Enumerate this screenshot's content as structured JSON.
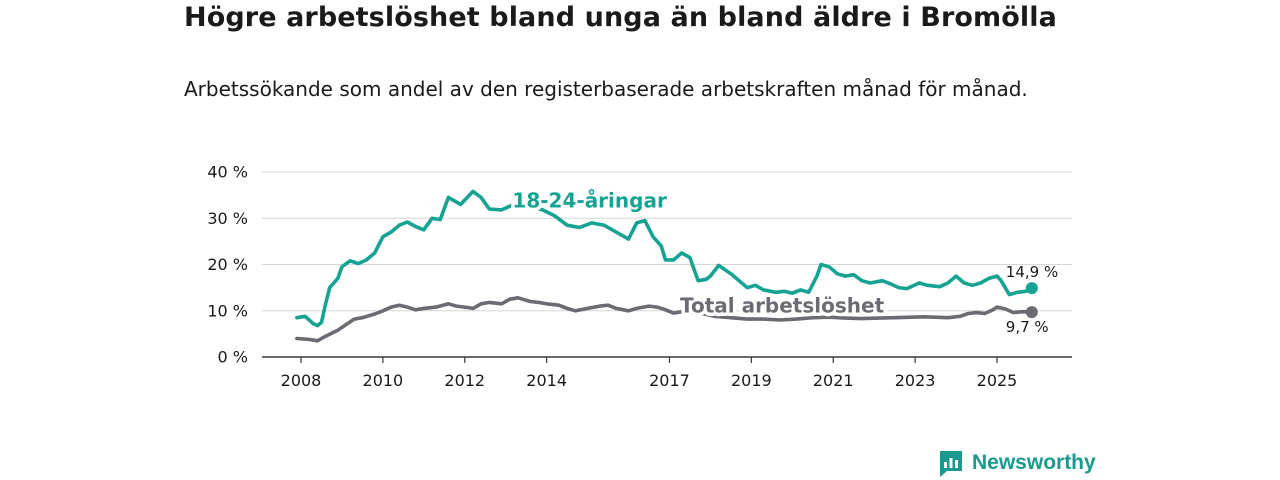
{
  "header": {
    "title": "Högre arbetslöshet bland unga än bland äldre i Bromölla",
    "subtitle": "Arbetssökande som andel av den registerbaserade arbetskraften månad för månad."
  },
  "brand": {
    "name": "Newsworthy",
    "icon": "newsworthy-logo-icon",
    "color": "#1a9a8e"
  },
  "chart_data": {
    "type": "line",
    "title": "Högre arbetslöshet bland unga än bland äldre i Bromölla",
    "subtitle": "Arbetssökande som andel av den registerbaserade arbetskraften månad för månad.",
    "xlabel": "",
    "ylabel": "",
    "xlim": [
      2007.7,
      2026.7
    ],
    "ylim": [
      0,
      40
    ],
    "grid": true,
    "x_ticks": [
      2008,
      2010,
      2012,
      2014,
      2017,
      2019,
      2021,
      2023,
      2025
    ],
    "x_tick_labels": [
      "2008",
      "2010",
      "2012",
      "2014",
      "2017",
      "2019",
      "2021",
      "2023",
      "2025"
    ],
    "y_ticks": [
      0,
      10,
      20,
      30,
      40
    ],
    "y_tick_labels": [
      "0 %",
      "10 %",
      "20 %",
      "30 %",
      "40 %"
    ],
    "series": [
      {
        "name": "18-24-åringar",
        "color": "#16a394",
        "end_label": "14,9 %",
        "points": [
          [
            2007.9,
            8.5
          ],
          [
            2008.1,
            8.8
          ],
          [
            2008.3,
            7.2
          ],
          [
            2008.4,
            6.8
          ],
          [
            2008.5,
            7.5
          ],
          [
            2008.6,
            11.5
          ],
          [
            2008.7,
            15.0
          ],
          [
            2008.9,
            17.0
          ],
          [
            2009.0,
            19.5
          ],
          [
            2009.2,
            20.8
          ],
          [
            2009.4,
            20.2
          ],
          [
            2009.6,
            21.0
          ],
          [
            2009.8,
            22.5
          ],
          [
            2010.0,
            26.0
          ],
          [
            2010.2,
            27.0
          ],
          [
            2010.4,
            28.5
          ],
          [
            2010.6,
            29.2
          ],
          [
            2010.8,
            28.2
          ],
          [
            2011.0,
            27.5
          ],
          [
            2011.2,
            30.0
          ],
          [
            2011.4,
            29.7
          ],
          [
            2011.6,
            34.5
          ],
          [
            2011.9,
            33.0
          ],
          [
            2012.2,
            35.8
          ],
          [
            2012.4,
            34.5
          ],
          [
            2012.6,
            32.0
          ],
          [
            2012.9,
            31.8
          ],
          [
            2013.2,
            33.0
          ],
          [
            2013.6,
            32.5
          ],
          [
            2013.9,
            31.8
          ],
          [
            2014.2,
            30.5
          ],
          [
            2014.5,
            28.5
          ],
          [
            2014.8,
            28.0
          ],
          [
            2015.1,
            29.0
          ],
          [
            2015.4,
            28.5
          ],
          [
            2015.6,
            27.5
          ],
          [
            2015.8,
            26.5
          ],
          [
            2016.0,
            25.5
          ],
          [
            2016.2,
            29.0
          ],
          [
            2016.4,
            29.5
          ],
          [
            2016.6,
            26.0
          ],
          [
            2016.8,
            24.0
          ],
          [
            2016.9,
            21.0
          ],
          [
            2017.1,
            21.0
          ],
          [
            2017.3,
            22.5
          ],
          [
            2017.5,
            21.5
          ],
          [
            2017.7,
            16.5
          ],
          [
            2017.9,
            16.8
          ],
          [
            2018.0,
            17.5
          ],
          [
            2018.2,
            19.8
          ],
          [
            2018.5,
            18.0
          ],
          [
            2018.7,
            16.5
          ],
          [
            2018.9,
            15.0
          ],
          [
            2019.1,
            15.5
          ],
          [
            2019.3,
            14.5
          ],
          [
            2019.6,
            14.0
          ],
          [
            2019.8,
            14.2
          ],
          [
            2020.0,
            13.8
          ],
          [
            2020.2,
            14.5
          ],
          [
            2020.4,
            14.0
          ],
          [
            2020.6,
            17.5
          ],
          [
            2020.7,
            20.0
          ],
          [
            2020.9,
            19.5
          ],
          [
            2021.1,
            18.0
          ],
          [
            2021.3,
            17.5
          ],
          [
            2021.5,
            17.8
          ],
          [
            2021.7,
            16.5
          ],
          [
            2021.9,
            16.0
          ],
          [
            2022.2,
            16.5
          ],
          [
            2022.4,
            15.8
          ],
          [
            2022.6,
            15.0
          ],
          [
            2022.8,
            14.8
          ],
          [
            2023.1,
            16.0
          ],
          [
            2023.3,
            15.5
          ],
          [
            2023.6,
            15.2
          ],
          [
            2023.8,
            16.0
          ],
          [
            2024.0,
            17.5
          ],
          [
            2024.2,
            16.0
          ],
          [
            2024.4,
            15.5
          ],
          [
            2024.6,
            16.0
          ],
          [
            2024.8,
            17.0
          ],
          [
            2025.0,
            17.5
          ],
          [
            2025.1,
            16.5
          ],
          [
            2025.3,
            13.5
          ],
          [
            2025.5,
            14.0
          ],
          [
            2025.7,
            14.2
          ],
          [
            2025.85,
            14.9
          ]
        ]
      },
      {
        "name": "Total arbetslöshet",
        "color": "#6e6a72",
        "end_label": "9,7 %",
        "points": [
          [
            2007.9,
            4.0
          ],
          [
            2008.2,
            3.8
          ],
          [
            2008.4,
            3.5
          ],
          [
            2008.6,
            4.5
          ],
          [
            2008.9,
            5.8
          ],
          [
            2009.1,
            7.0
          ],
          [
            2009.3,
            8.2
          ],
          [
            2009.5,
            8.5
          ],
          [
            2009.8,
            9.3
          ],
          [
            2010.0,
            10.0
          ],
          [
            2010.2,
            10.8
          ],
          [
            2010.4,
            11.2
          ],
          [
            2010.6,
            10.8
          ],
          [
            2010.8,
            10.2
          ],
          [
            2011.0,
            10.5
          ],
          [
            2011.3,
            10.8
          ],
          [
            2011.6,
            11.5
          ],
          [
            2011.8,
            11.0
          ],
          [
            2012.0,
            10.8
          ],
          [
            2012.2,
            10.5
          ],
          [
            2012.4,
            11.5
          ],
          [
            2012.6,
            11.8
          ],
          [
            2012.9,
            11.5
          ],
          [
            2013.1,
            12.5
          ],
          [
            2013.3,
            12.8
          ],
          [
            2013.6,
            12.0
          ],
          [
            2013.8,
            11.8
          ],
          [
            2014.0,
            11.5
          ],
          [
            2014.3,
            11.2
          ],
          [
            2014.5,
            10.5
          ],
          [
            2014.7,
            10.0
          ],
          [
            2015.0,
            10.5
          ],
          [
            2015.3,
            11.0
          ],
          [
            2015.5,
            11.2
          ],
          [
            2015.7,
            10.5
          ],
          [
            2016.0,
            10.0
          ],
          [
            2016.2,
            10.5
          ],
          [
            2016.5,
            11.0
          ],
          [
            2016.7,
            10.8
          ],
          [
            2016.9,
            10.2
          ],
          [
            2017.1,
            9.5
          ],
          [
            2017.3,
            9.8
          ],
          [
            2017.5,
            10.0
          ],
          [
            2017.7,
            9.5
          ],
          [
            2017.9,
            9.2
          ],
          [
            2018.1,
            8.8
          ],
          [
            2018.5,
            8.5
          ],
          [
            2018.9,
            8.2
          ],
          [
            2019.3,
            8.2
          ],
          [
            2019.7,
            8.0
          ],
          [
            2020.1,
            8.2
          ],
          [
            2020.5,
            8.5
          ],
          [
            2020.9,
            8.6
          ],
          [
            2021.3,
            8.4
          ],
          [
            2021.7,
            8.3
          ],
          [
            2022.1,
            8.4
          ],
          [
            2022.5,
            8.5
          ],
          [
            2022.9,
            8.6
          ],
          [
            2023.2,
            8.7
          ],
          [
            2023.5,
            8.6
          ],
          [
            2023.8,
            8.5
          ],
          [
            2024.1,
            8.8
          ],
          [
            2024.3,
            9.4
          ],
          [
            2024.5,
            9.6
          ],
          [
            2024.7,
            9.4
          ],
          [
            2024.9,
            10.2
          ],
          [
            2025.0,
            10.8
          ],
          [
            2025.2,
            10.4
          ],
          [
            2025.4,
            9.6
          ],
          [
            2025.6,
            9.8
          ],
          [
            2025.85,
            9.7
          ]
        ]
      }
    ],
    "annotations": [
      {
        "series": "18-24-åringar",
        "text": "18-24-åringar",
        "x": 2015.05,
        "y": 32.3
      },
      {
        "series": "Total arbetslöshet",
        "text": "Total arbetslöshet",
        "x": 2019.75,
        "y": 9.6
      }
    ]
  }
}
